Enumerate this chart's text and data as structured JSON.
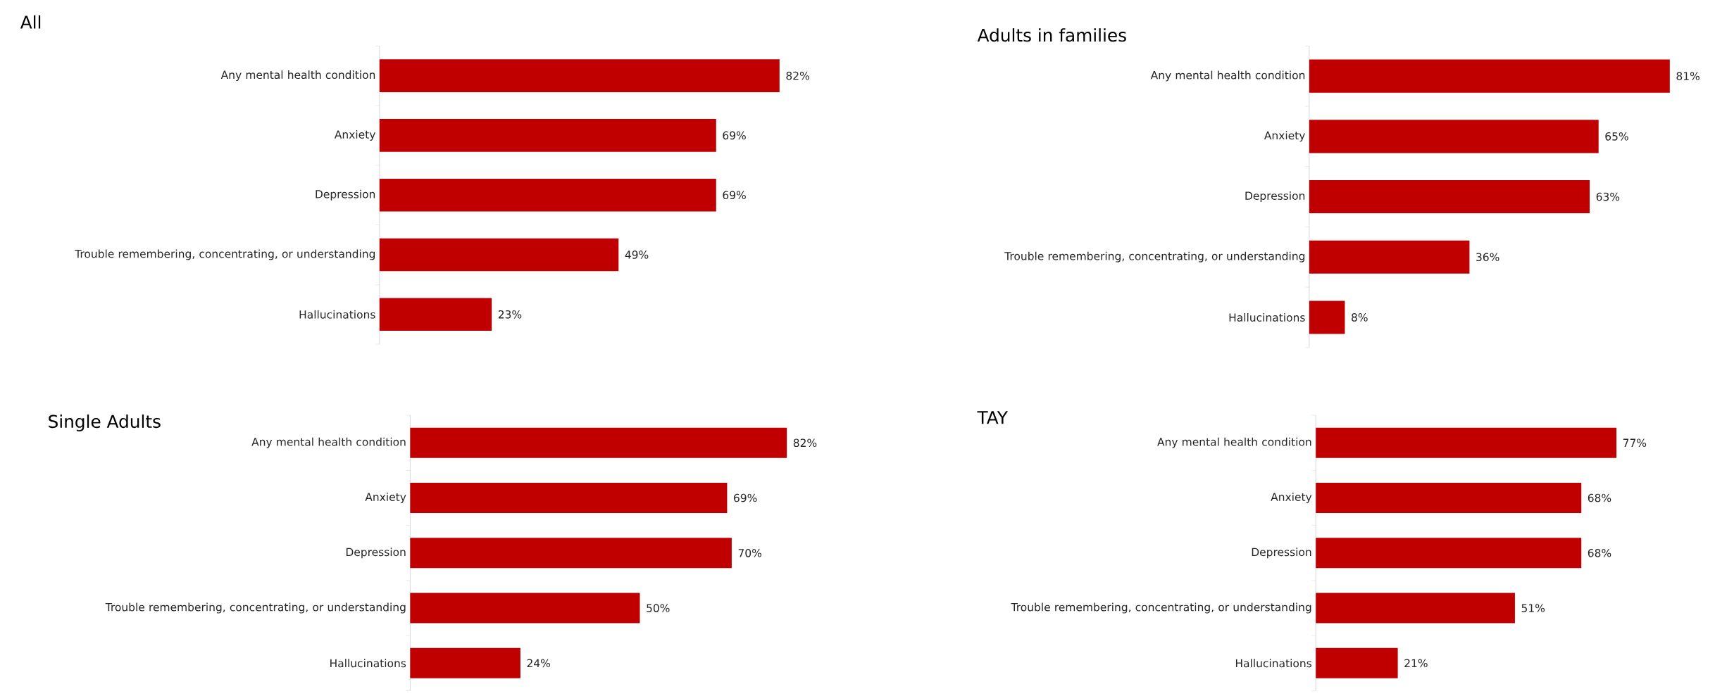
{
  "chart_data": [
    {
      "type": "bar",
      "orientation": "horizontal",
      "title": "All",
      "categories": [
        "Any mental health condition",
        "Anxiety",
        "Depression",
        "Trouble remembering, concentrating, or understanding",
        "Hallucinations"
      ],
      "values": [
        82,
        69,
        69,
        49,
        23
      ],
      "value_labels": [
        "82%",
        "69%",
        "69%",
        "49%",
        "23%"
      ],
      "color": "#c00000",
      "tick_labels": "y"
    },
    {
      "type": "bar",
      "orientation": "horizontal",
      "title": "Adults in families",
      "categories": [
        "Any mental health condition",
        "Anxiety",
        "Depression",
        "Trouble remembering, concentrating, or understanding",
        "Hallucinations"
      ],
      "values": [
        81,
        65,
        63,
        36,
        8
      ],
      "value_labels": [
        "81%",
        "65%",
        "63%",
        "36%",
        "8%"
      ],
      "color": "#c00000",
      "tick_labels": "y"
    },
    {
      "type": "bar",
      "orientation": "horizontal",
      "title": "Single Adults",
      "categories": [
        "Any mental health condition",
        "Anxiety",
        "Depression",
        "Trouble remembering, concentrating, or understanding",
        "Hallucinations"
      ],
      "values": [
        82,
        69,
        70,
        50,
        24
      ],
      "value_labels": [
        "82%",
        "69%",
        "70%",
        "50%",
        "24%"
      ],
      "color": "#c00000",
      "tick_labels": "y"
    },
    {
      "type": "bar",
      "orientation": "horizontal",
      "title": "TAY",
      "categories": [
        "Any mental health condition",
        "Anxiety",
        "Depression",
        "Trouble remembering, concentrating, or understanding",
        "Hallucinations"
      ],
      "values": [
        77,
        68,
        68,
        51,
        21
      ],
      "value_labels": [
        "77%",
        "68%",
        "68%",
        "51%",
        "21%"
      ],
      "color": "#c00000",
      "tick_labels": "y"
    }
  ]
}
